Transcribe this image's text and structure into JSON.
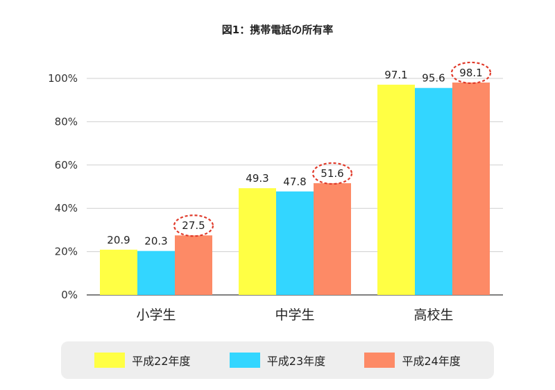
{
  "title": "図1：携帯電話の所有率",
  "chart_data": {
    "type": "bar",
    "title": "図1：携帯電話の所有率",
    "categories": [
      "小学生",
      "中学生",
      "高校生"
    ],
    "series": [
      {
        "name": "平成22年度",
        "color": "#ffff44",
        "values": [
          20.9,
          49.3,
          97.1
        ],
        "labels": [
          "20.9",
          "49.3",
          "97.1"
        ]
      },
      {
        "name": "平成23年度",
        "color": "#33d6ff",
        "values": [
          20.3,
          47.8,
          95.6
        ],
        "labels": [
          "20.3",
          "47.8",
          "95.6"
        ]
      },
      {
        "name": "平成24年度",
        "color": "#fd8a66",
        "values": [
          27.5,
          51.6,
          98.1
        ],
        "labels": [
          "27.5",
          "51.6",
          "98.1"
        ],
        "highlighted": true
      }
    ],
    "yticks": [
      "0%",
      "20%",
      "40%",
      "60%",
      "80%",
      "100%"
    ],
    "ylim": [
      0,
      100
    ],
    "grid": true,
    "legend_position": "bottom",
    "highlight_color": "#e03a2a"
  }
}
